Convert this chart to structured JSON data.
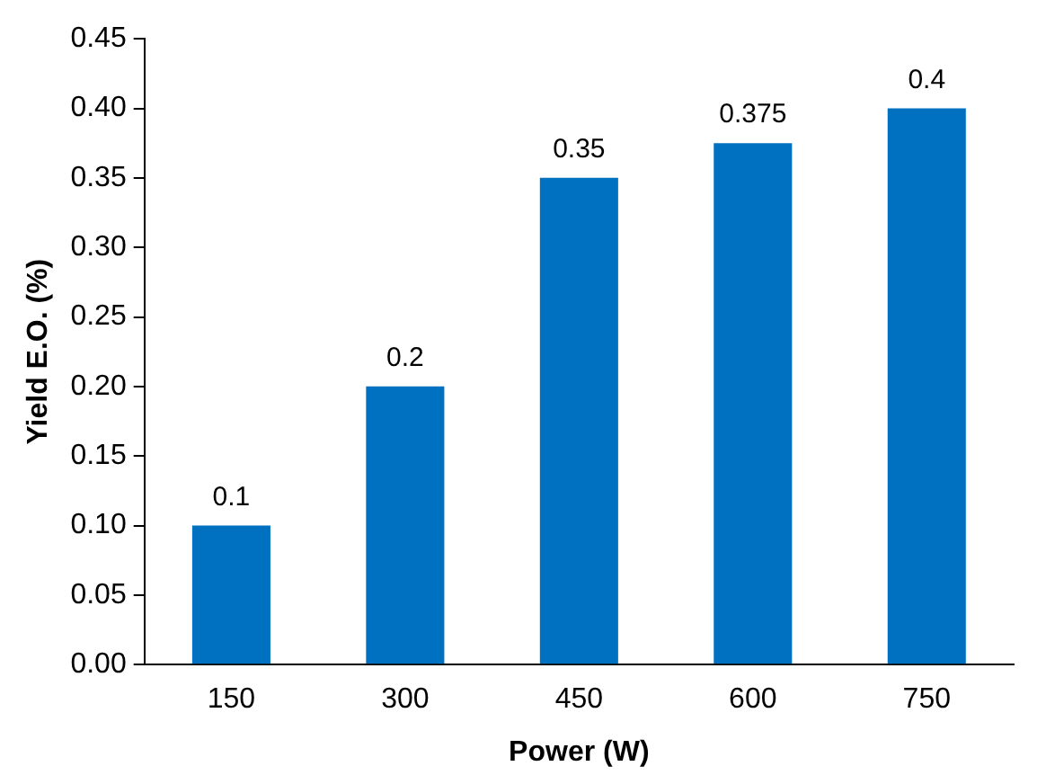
{
  "chart_data": {
    "type": "bar",
    "xlabel": "Power (W)",
    "ylabel": "Yield E.O. (%)",
    "categories": [
      "150",
      "300",
      "450",
      "600",
      "750"
    ],
    "values": [
      0.1,
      0.2,
      0.35,
      0.375,
      0.4
    ],
    "color": "#0070c0",
    "ylim": [
      0,
      0.45
    ],
    "yticks": [
      {
        "value": 0,
        "label": "0.00"
      },
      {
        "value": 0.05,
        "label": "0.05"
      },
      {
        "value": 0.1,
        "label": "0.10"
      },
      {
        "value": 0.15,
        "label": "0.15"
      },
      {
        "value": 0.2,
        "label": "0.20"
      },
      {
        "value": 0.25,
        "label": "0.25"
      },
      {
        "value": 0.3,
        "label": "0.30"
      },
      {
        "value": 0.35,
        "label": "0.35"
      },
      {
        "value": 0.4,
        "label": "0.40"
      },
      {
        "value": 0.45,
        "label": "0.45"
      }
    ],
    "grid": false,
    "data_labels": true
  }
}
